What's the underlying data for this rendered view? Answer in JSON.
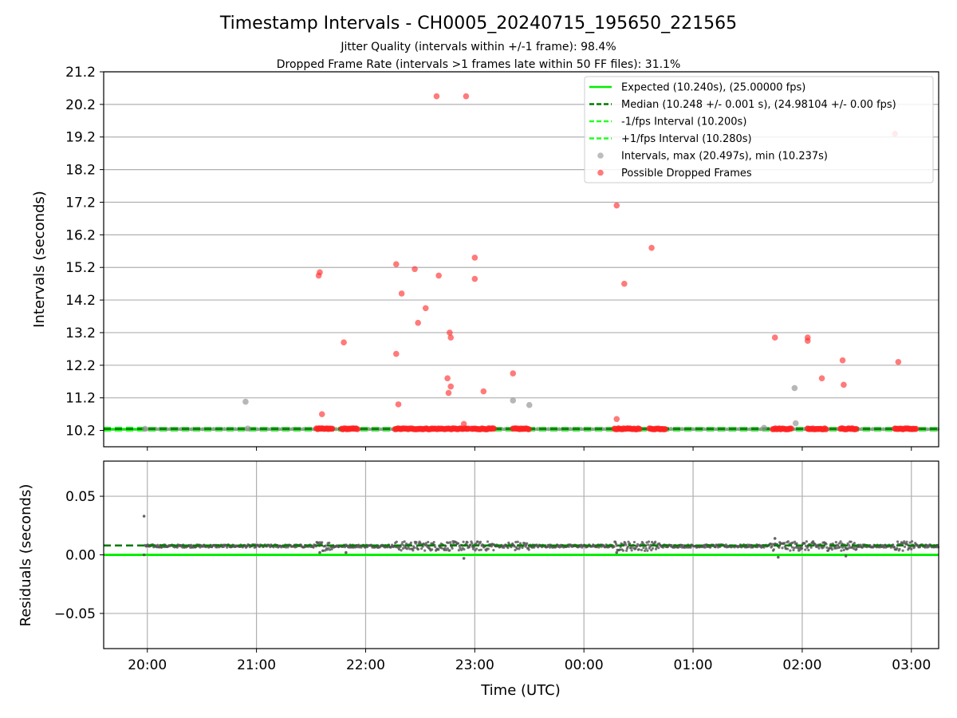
{
  "chart_data": [
    {
      "type": "scatter",
      "id": "intervals",
      "title": "Timestamp Intervals - CH0005_20240715_195650_221565",
      "subtitle_lines": [
        "Jitter Quality (intervals within +/-1 frame): 98.4%",
        "Dropped Frame Rate (intervals >1 frames late within 50 FF files): 31.1%"
      ],
      "ylabel": "Intervals (seconds)",
      "xlim_hours": [
        19.6,
        27.25
      ],
      "ylim": [
        9.7,
        21.2
      ],
      "yticks": [
        10.2,
        11.2,
        12.2,
        13.2,
        14.2,
        15.2,
        16.2,
        17.2,
        18.2,
        19.2,
        20.2,
        21.2
      ],
      "ytick_labels": [
        "10.2",
        "11.2",
        "12.2",
        "13.2",
        "14.2",
        "15.2",
        "16.2",
        "17.2",
        "18.2",
        "19.2",
        "20.2",
        "21.2"
      ],
      "grid": "horizontal",
      "legend_position": "top-right",
      "lines": [
        {
          "name": "Expected (10.240s), (25.00000 fps)",
          "y": 10.24,
          "color": "#00ee00",
          "style": "solid"
        },
        {
          "name": "Median (10.248 +/- 0.001 s), (24.98104 +/- 0.00 fps)",
          "y": 10.248,
          "color": "#007a00",
          "style": "dashed"
        },
        {
          "name": "-1/fps Interval (10.200s)",
          "y": 10.2,
          "color": "#22ff22",
          "style": "dashed"
        },
        {
          "name": "+1/fps Interval (10.280s)",
          "y": 10.28,
          "color": "#22ff22",
          "style": "dashed"
        }
      ],
      "series": [
        {
          "name": "Intervals, max (20.497s), min (10.237s)",
          "color": "#999999",
          "points": [
            [
              19.98,
              10.25
            ],
            [
              20.9,
              11.08
            ],
            [
              20.92,
              10.26
            ],
            [
              22.33,
              10.26
            ],
            [
              23.35,
              11.12
            ],
            [
              23.5,
              10.98
            ],
            [
              25.65,
              10.28
            ],
            [
              25.93,
              11.5
            ],
            [
              25.94,
              10.42
            ],
            [
              26.05,
              10.26
            ],
            [
              26.85,
              10.26
            ]
          ]
        },
        {
          "name": "Possible Dropped Frames",
          "color": "#ff3333",
          "points": [
            [
              21.57,
              14.95
            ],
            [
              21.58,
              15.05
            ],
            [
              21.6,
              10.7
            ],
            [
              21.8,
              12.9
            ],
            [
              22.28,
              15.3
            ],
            [
              22.28,
              12.55
            ],
            [
              22.3,
              11.0
            ],
            [
              22.33,
              14.4
            ],
            [
              22.45,
              15.15
            ],
            [
              22.48,
              13.5
            ],
            [
              22.55,
              13.95
            ],
            [
              22.65,
              20.45
            ],
            [
              22.67,
              14.95
            ],
            [
              22.75,
              11.8
            ],
            [
              22.76,
              11.35
            ],
            [
              22.77,
              13.2
            ],
            [
              22.78,
              13.05
            ],
            [
              22.78,
              11.55
            ],
            [
              22.9,
              10.4
            ],
            [
              22.92,
              20.45
            ],
            [
              23.0,
              15.5
            ],
            [
              23.0,
              14.85
            ],
            [
              23.08,
              11.4
            ],
            [
              23.35,
              11.95
            ],
            [
              24.3,
              17.1
            ],
            [
              24.3,
              10.55
            ],
            [
              24.37,
              14.7
            ],
            [
              24.62,
              15.8
            ],
            [
              25.75,
              13.05
            ],
            [
              26.05,
              13.05
            ],
            [
              26.05,
              12.95
            ],
            [
              26.18,
              11.8
            ],
            [
              26.37,
              12.35
            ],
            [
              26.38,
              11.6
            ],
            [
              26.85,
              19.3
            ],
            [
              26.88,
              12.3
            ]
          ],
          "clusters": [
            [
              21.55,
              21.7
            ],
            [
              21.78,
              21.93
            ],
            [
              22.27,
              22.95
            ],
            [
              22.97,
              23.18
            ],
            [
              23.35,
              23.5
            ],
            [
              24.28,
              24.52
            ],
            [
              24.6,
              24.75
            ],
            [
              25.73,
              25.9
            ],
            [
              26.05,
              26.22
            ],
            [
              26.35,
              26.5
            ],
            [
              26.85,
              27.05
            ]
          ]
        }
      ]
    },
    {
      "type": "scatter",
      "id": "residuals",
      "xlabel": "Time (UTC)",
      "ylabel": "Residuals (seconds)",
      "xlim_hours": [
        19.6,
        27.25
      ],
      "ylim": [
        -0.08,
        0.08
      ],
      "yticks": [
        0.05,
        0.0,
        -0.05
      ],
      "ytick_labels": [
        "0.05",
        "0.00",
        "−0.05"
      ],
      "xticks_hours": [
        20,
        21,
        22,
        23,
        24,
        25,
        26,
        27
      ],
      "xtick_labels": [
        "20:00",
        "21:00",
        "22:00",
        "23:00",
        "00:00",
        "01:00",
        "02:00",
        "03:00"
      ],
      "grid": "both",
      "lines": [
        {
          "y": 0.0,
          "color": "#00ee00",
          "style": "solid"
        },
        {
          "y": 0.008,
          "color": "#007a00",
          "style": "dashed"
        }
      ],
      "outliers": [
        [
          19.97,
          0.033
        ],
        [
          19.97,
          0.0
        ],
        [
          22.9,
          -0.003
        ],
        [
          25.75,
          0.014
        ],
        [
          25.78,
          -0.002
        ],
        [
          26.4,
          -0.001
        ],
        [
          24.3,
          0.002
        ],
        [
          21.58,
          0.002
        ],
        [
          21.82,
          0.002
        ]
      ],
      "point_color": "#555555"
    }
  ]
}
